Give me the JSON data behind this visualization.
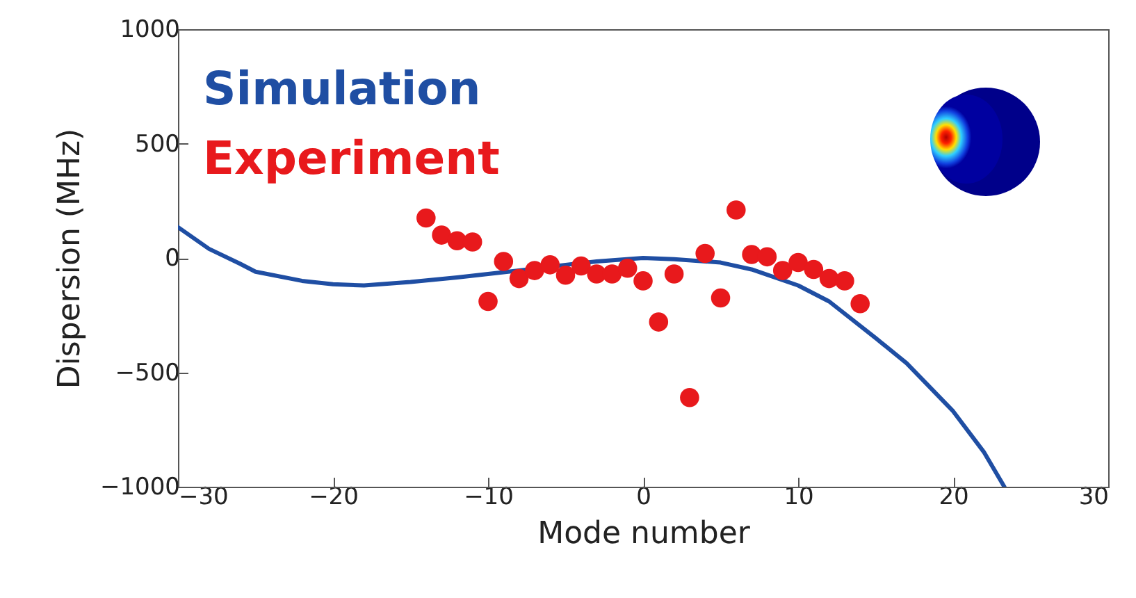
{
  "chart_data": {
    "type": "scatter",
    "xlabel": "Mode number",
    "ylabel": "Dispersion (MHz)",
    "xlim": [
      -30,
      30
    ],
    "xticks": [
      -30,
      -20,
      -10,
      0,
      10,
      20,
      30
    ],
    "ylim": [
      -1000,
      1000
    ],
    "yticks": [
      -1000,
      -500,
      0,
      500,
      1000
    ],
    "grid": false,
    "legend": "top left",
    "series": [
      {
        "name": "Simulation",
        "type": "line",
        "color": "#1f4ea3",
        "line_style": "solid",
        "marker": "none",
        "x": [
          -30,
          -28,
          -26,
          -25,
          -22,
          -20,
          -18,
          -15,
          -12,
          -10,
          -8,
          -5,
          -3,
          0,
          2,
          5,
          7,
          10,
          12,
          15,
          17,
          20,
          22,
          23.3
        ],
        "values": [
          135,
          40,
          -25,
          -60,
          -100,
          -115,
          -120,
          -105,
          -85,
          -70,
          -55,
          -30,
          -15,
          0,
          -5,
          -20,
          -50,
          -120,
          -190,
          -350,
          -460,
          -670,
          -850,
          -1000
        ]
      },
      {
        "name": "Experiment",
        "color": "#e8191c",
        "marker": "circle",
        "x": [
          -14,
          -13,
          -12,
          -11,
          -10,
          -9,
          -8,
          -7,
          -6,
          -5,
          -4,
          -3,
          -2,
          -1,
          0,
          1,
          2,
          3,
          4,
          5,
          6,
          7,
          8,
          9,
          10,
          11,
          12,
          13,
          14
        ],
        "values": [
          175,
          100,
          75,
          70,
          -190,
          -15,
          -90,
          -55,
          -30,
          -75,
          -35,
          -70,
          -70,
          -45,
          -100,
          -280,
          -70,
          -610,
          20,
          -175,
          210,
          15,
          5,
          -55,
          -20,
          -50,
          -90,
          -100,
          -200
        ]
      }
    ]
  }
}
